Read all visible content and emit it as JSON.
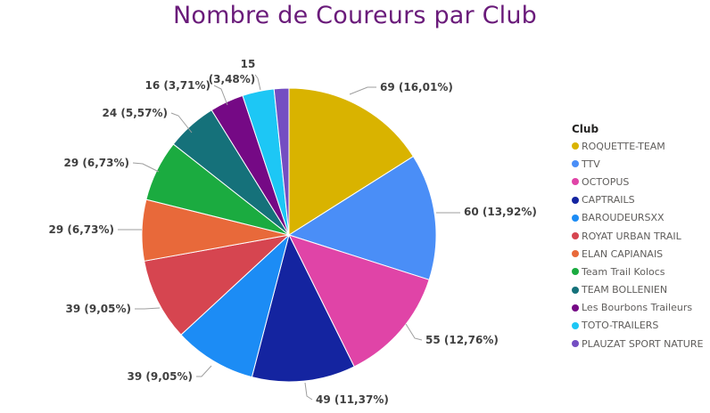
{
  "chart_data": {
    "type": "pie",
    "title": "Nombre de Coureurs par Club",
    "legend_title": "Club",
    "legend_position": "right",
    "slices": [
      {
        "name": "ROQUETTE-TEAM",
        "value": 69,
        "label": "69 (16,01%)",
        "color": "#D9B300"
      },
      {
        "name": "TTV",
        "value": 60,
        "label": "60 (13,92%)",
        "color": "#4A8EF7"
      },
      {
        "name": "OCTOPUS",
        "value": 55,
        "label": "55 (12,76%)",
        "color": "#E044A7"
      },
      {
        "name": "CAPTRAILS",
        "value": 49,
        "label": "49 (11,37%)",
        "color": "#1424A0"
      },
      {
        "name": "BAROUDEURSXX",
        "value": 39,
        "label": "39 (9,05%)",
        "color": "#1C8CF5"
      },
      {
        "name": "ROYAT URBAN TRAIL",
        "value": 39,
        "label": "39 (9,05%)",
        "color": "#D64550"
      },
      {
        "name": "ELAN CAPIANAIS",
        "value": 29,
        "label": "29 (6,73%)",
        "color": "#E8693A"
      },
      {
        "name": "Team Trail Kolocs",
        "value": 29,
        "label": "29 (6,73%)",
        "color": "#1BAB40"
      },
      {
        "name": "TEAM BOLLENIEN",
        "value": 24,
        "label": "24 (5,57%)",
        "color": "#15717A"
      },
      {
        "name": "Les Bourbons Traileurs",
        "value": 16,
        "label": "16 (3,71%)",
        "color": "#750985"
      },
      {
        "name": "TOTO-TRAILERS",
        "value": 15,
        "label": "15 (3,48%)",
        "color": "#1DC7F5"
      },
      {
        "name": "PLAUZAT SPORT NATURE",
        "value": 7,
        "label": "",
        "color": "#744EC2"
      }
    ]
  }
}
